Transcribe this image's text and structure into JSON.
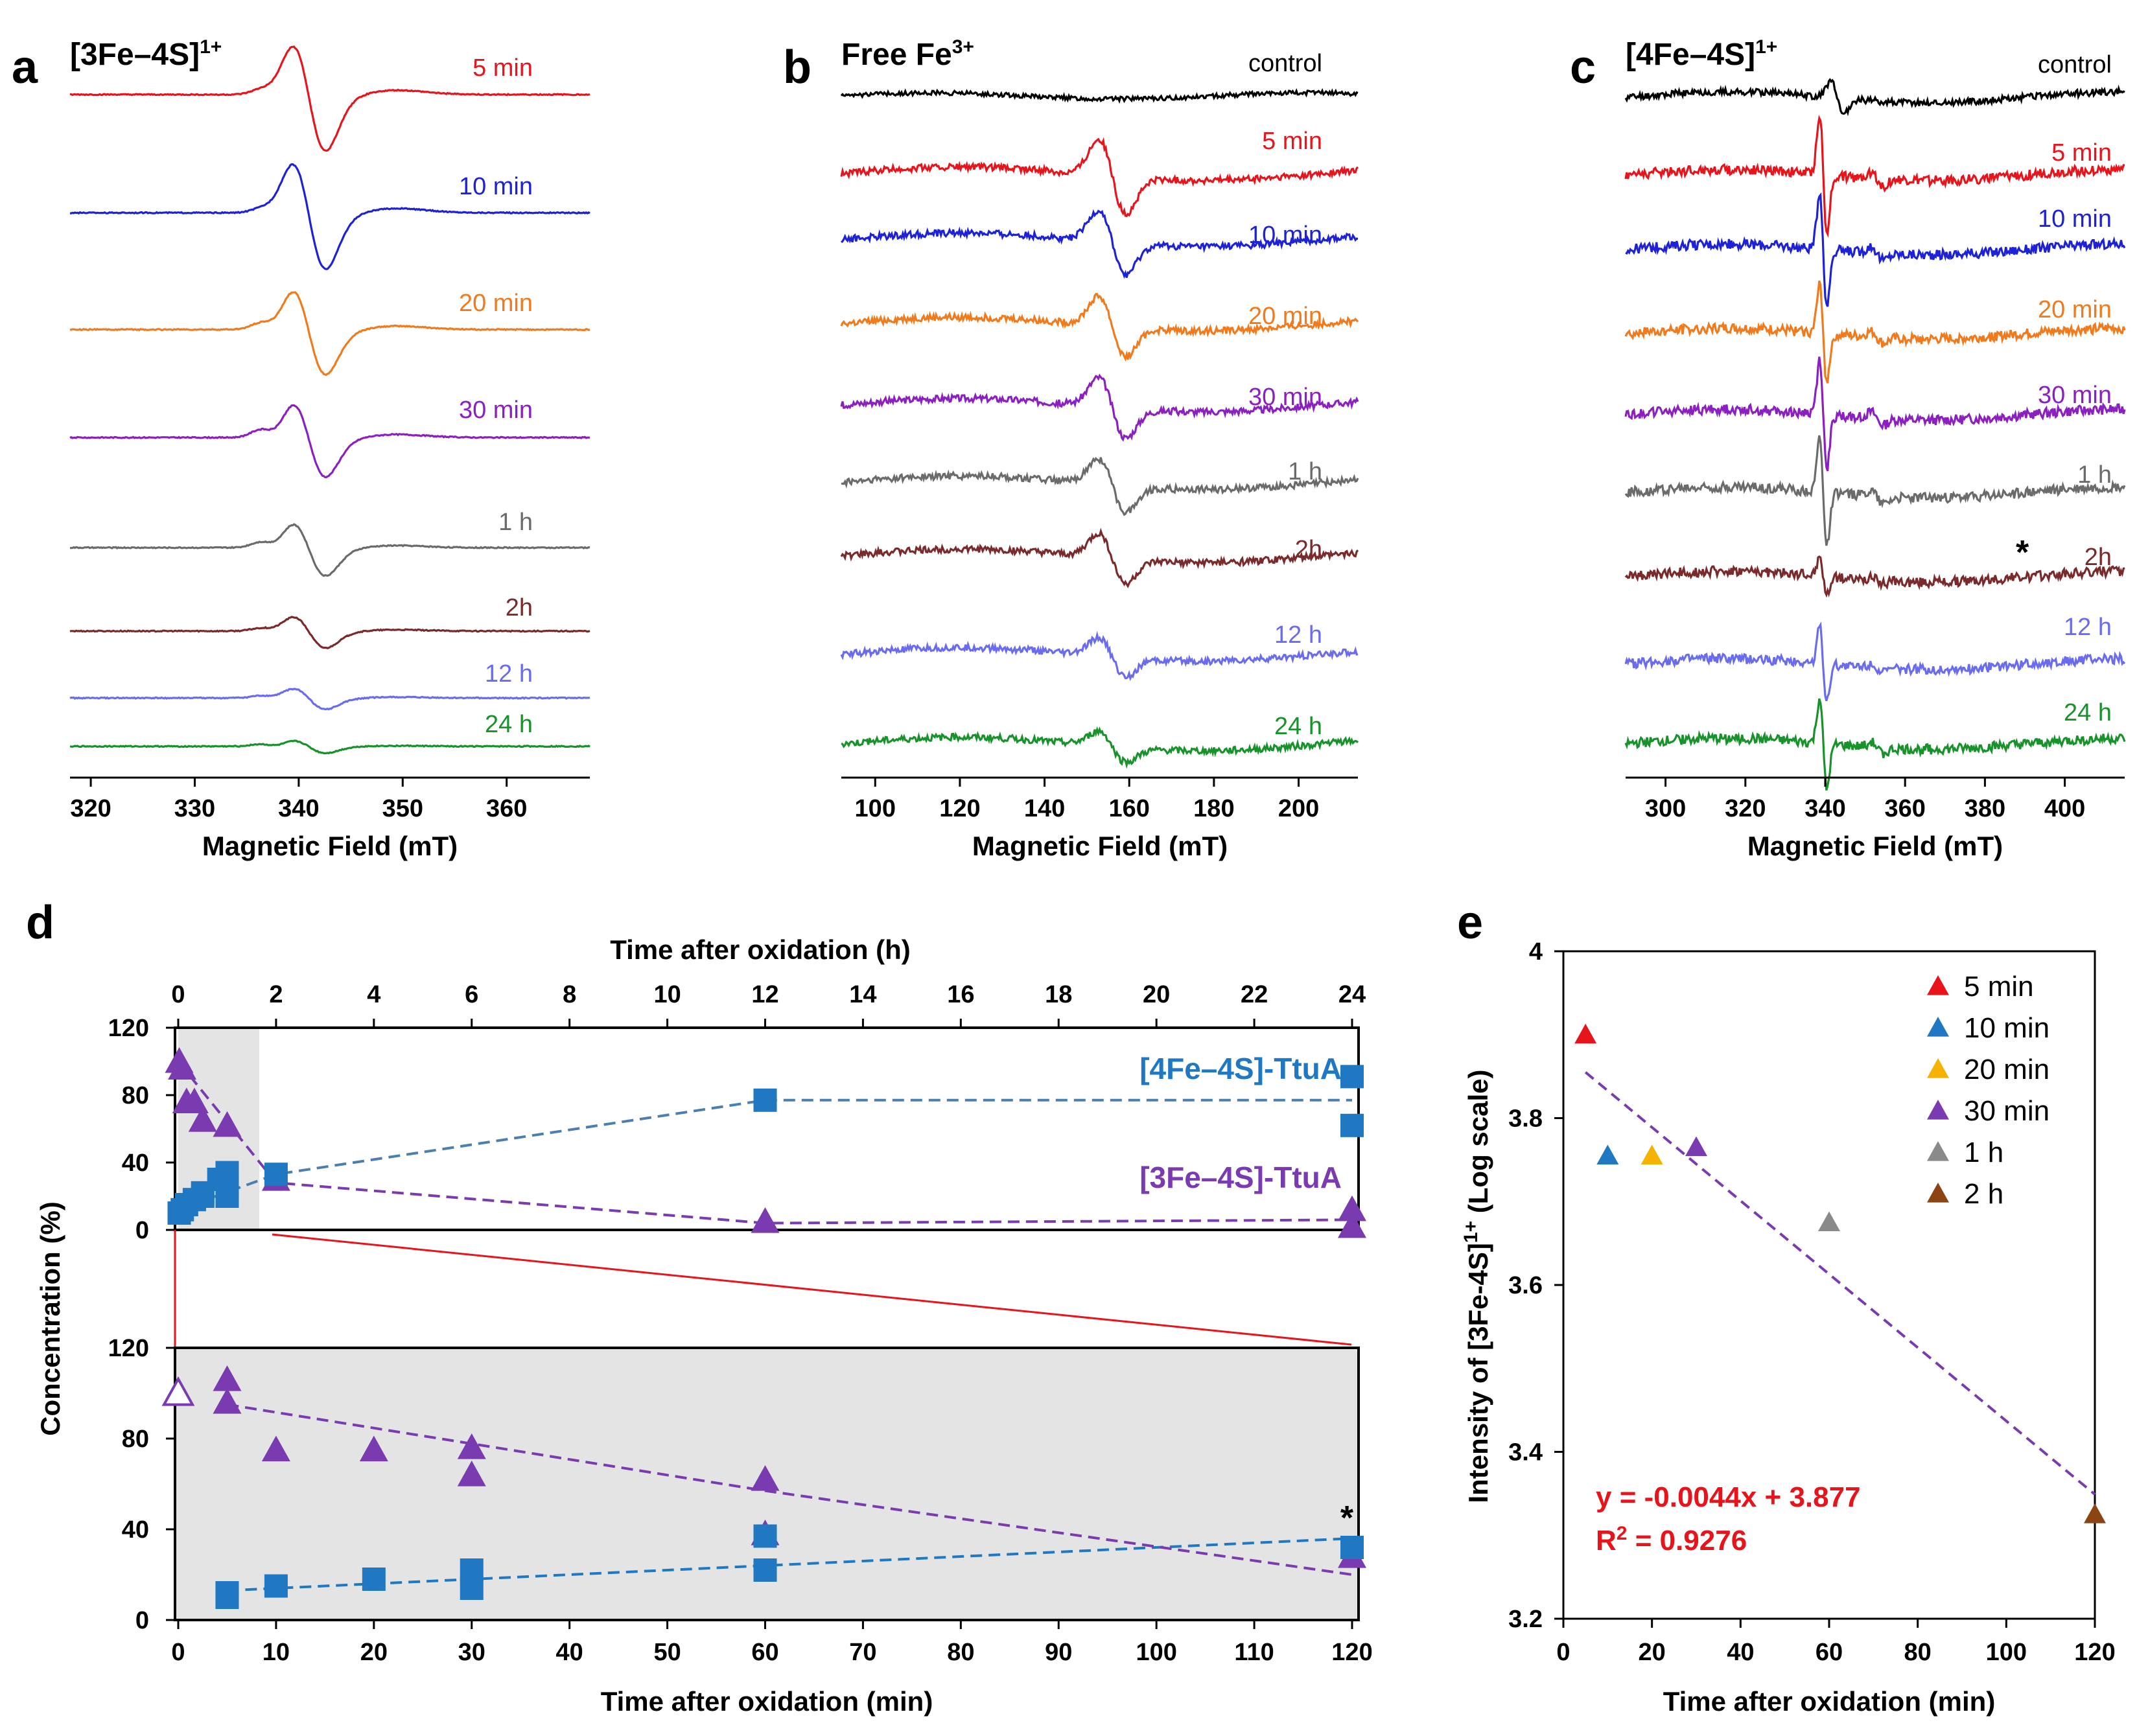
{
  "figure": {
    "panel_a": {
      "label": "a",
      "title": "[3Fe–4S]",
      "title_sup": "1+",
      "xlabel": "Magnetic Field (mT)",
      "xrange": [
        318,
        368
      ],
      "xticks": [
        320,
        330,
        340,
        350,
        360
      ],
      "traces": [
        {
          "label": "5 min",
          "color": "#e8141c",
          "amp": 1.0,
          "shoulder": 0.15
        },
        {
          "label": "10 min",
          "color": "#1d22d8",
          "amp": 1.0,
          "shoulder": 0.12
        },
        {
          "label": "20 min",
          "color": "#f07a1c",
          "amp": 0.8,
          "shoulder": 0.25
        },
        {
          "label": "30 min",
          "color": "#8b1fc0",
          "amp": 0.7,
          "shoulder": 0.35
        },
        {
          "label": "1 h",
          "color": "#6b6b6b",
          "amp": 0.5,
          "shoulder": 0.35
        },
        {
          "label": "2h",
          "color": "#7a2a2a",
          "amp": 0.3,
          "shoulder": 0.3
        },
        {
          "label": "12 h",
          "color": "#6a6cf0",
          "amp": 0.2,
          "shoulder": 0.35
        },
        {
          "label": "24 h",
          "color": "#18922a",
          "amp": 0.12,
          "shoulder": 0.6
        }
      ]
    },
    "panel_b": {
      "label": "b",
      "title": "Free Fe",
      "title_sup": "3+",
      "xlabel": "Magnetic Field (mT)",
      "xrange": [
        92,
        214
      ],
      "xticks": [
        100,
        120,
        140,
        160,
        180,
        200
      ],
      "traces": [
        {
          "label": "control",
          "color": "#000000",
          "amp": 0.0
        },
        {
          "label": "5 min",
          "color": "#e8141c",
          "amp": 1.0
        },
        {
          "label": "10 min",
          "color": "#1d22d8",
          "amp": 0.85
        },
        {
          "label": "20 min",
          "color": "#f07a1c",
          "amp": 0.8
        },
        {
          "label": "30 min",
          "color": "#8b1fc0",
          "amp": 0.8
        },
        {
          "label": "1 h",
          "color": "#6b6b6b",
          "amp": 0.7
        },
        {
          "label": "2h",
          "color": "#7a2a2a",
          "amp": 0.65
        },
        {
          "label": "12 h",
          "color": "#6a6cf0",
          "amp": 0.5
        },
        {
          "label": "24 h",
          "color": "#18922a",
          "amp": 0.4
        }
      ]
    },
    "panel_c": {
      "label": "c",
      "title": "[4Fe–4S]",
      "title_sup": "1+",
      "xlabel": "Magnetic Field (mT)",
      "xrange": [
        290,
        415
      ],
      "xticks": [
        300,
        320,
        340,
        360,
        380,
        400
      ],
      "star": "*",
      "traces": [
        {
          "label": "control",
          "color": "#000000",
          "amp": 0.25
        },
        {
          "label": "5 min",
          "color": "#e8141c",
          "amp": 1.0
        },
        {
          "label": "10 min",
          "color": "#1d22d8",
          "amp": 0.95
        },
        {
          "label": "20 min",
          "color": "#f07a1c",
          "amp": 0.8
        },
        {
          "label": "30 min",
          "color": "#8b1fc0",
          "amp": 0.9
        },
        {
          "label": "1 h",
          "color": "#6b6b6b",
          "amp": 0.9
        },
        {
          "label": "2h",
          "color": "#7a2a2a",
          "amp": 0.3
        },
        {
          "label": "12 h",
          "color": "#6a6cf0",
          "amp": 0.6
        },
        {
          "label": "24 h",
          "color": "#18922a",
          "amp": 0.75
        }
      ]
    },
    "panel_d": {
      "label": "d",
      "ylabel": "Concentration (%)",
      "top_xlabel": "Time after oxidation (h)",
      "top_xrange": [
        0,
        24
      ],
      "top_xticks": [
        0,
        2,
        4,
        6,
        8,
        10,
        12,
        14,
        16,
        18,
        20,
        22,
        24
      ],
      "top_yrange": [
        0,
        120
      ],
      "top_yticks": [
        0,
        40,
        80,
        120
      ],
      "bottom_xlabel": "Time after oxidation (min)",
      "bottom_xrange": [
        0,
        120
      ],
      "bottom_xticks": [
        0,
        10,
        20,
        30,
        40,
        50,
        60,
        70,
        80,
        90,
        100,
        110,
        120
      ],
      "bottom_yrange": [
        0,
        120
      ],
      "bottom_yticks": [
        0,
        40,
        80,
        120
      ],
      "star": "*",
      "series_4fe": {
        "name": "[4Fe–4S]-TtuA",
        "color": "#1f78c1",
        "top_points": [
          [
            0.02,
            10
          ],
          [
            0.083,
            12
          ],
          [
            0.17,
            15
          ],
          [
            0.33,
            18
          ],
          [
            0.5,
            20
          ],
          [
            0.5,
            22
          ],
          [
            0.83,
            30
          ],
          [
            1.0,
            34
          ],
          [
            1.0,
            25
          ],
          [
            1.0,
            20
          ],
          [
            2,
            33
          ],
          [
            12,
            77
          ],
          [
            24,
            91
          ],
          [
            24,
            62
          ]
        ],
        "top_fit": [
          [
            0,
            12
          ],
          [
            2,
            33
          ],
          [
            12,
            77
          ],
          [
            24,
            77
          ]
        ],
        "bottom_points": [
          [
            5,
            10
          ],
          [
            5,
            12
          ],
          [
            10,
            15
          ],
          [
            20,
            18
          ],
          [
            30,
            14
          ],
          [
            30,
            22
          ],
          [
            60,
            22
          ],
          [
            60,
            37
          ],
          [
            120,
            32
          ]
        ],
        "bottom_fit": [
          [
            5,
            13
          ],
          [
            60,
            24
          ],
          [
            120,
            36
          ]
        ]
      },
      "series_3fe": {
        "name": "[3Fe–4S]-TtuA",
        "color": "#7a3ab0",
        "top_points": [
          [
            0.02,
            100
          ],
          [
            0.08,
            96
          ],
          [
            0.17,
            76
          ],
          [
            0.33,
            76
          ],
          [
            0.5,
            65
          ],
          [
            1.0,
            62
          ],
          [
            2,
            30
          ],
          [
            12,
            5
          ],
          [
            24,
            12
          ],
          [
            24,
            2
          ]
        ],
        "top_fit": [
          [
            0,
            100
          ],
          [
            2,
            28
          ],
          [
            12,
            4
          ],
          [
            24,
            6
          ]
        ],
        "bottom_points": [
          [
            5,
            106
          ],
          [
            5,
            96
          ],
          [
            10,
            75
          ],
          [
            20,
            75
          ],
          [
            30,
            76
          ],
          [
            30,
            64
          ],
          [
            60,
            62
          ],
          [
            60,
            38
          ],
          [
            120,
            28
          ]
        ],
        "bottom_fit": [
          [
            5,
            95
          ],
          [
            60,
            57
          ],
          [
            120,
            20
          ]
        ],
        "open_point": [
          0,
          100
        ]
      }
    },
    "panel_e": {
      "label": "e",
      "ylabel": "Intensity of [3Fe-4S]",
      "ylabel_sup": "1+",
      "ylabel_tail": " (Log scale)",
      "xlabel": "Time after oxidation (min)",
      "xrange": [
        0,
        120
      ],
      "xticks": [
        0,
        20,
        40,
        60,
        80,
        100,
        120
      ],
      "yrange": [
        3.2,
        4.0
      ],
      "yticks": [
        "3.2",
        "3.4",
        "3.6",
        "3.8",
        "4"
      ],
      "points": [
        {
          "label": "5 min",
          "x": 5,
          "y": 3.9,
          "color": "#e8141c"
        },
        {
          "label": "10 min",
          "x": 10,
          "y": 3.755,
          "color": "#1f78c1"
        },
        {
          "label": "20 min",
          "x": 20,
          "y": 3.755,
          "color": "#f5b200"
        },
        {
          "label": "30 min",
          "x": 30,
          "y": 3.765,
          "color": "#7a3ab0"
        },
        {
          "label": "1 h",
          "x": 60,
          "y": 3.675,
          "color": "#8a8a8a"
        },
        {
          "label": "2 h",
          "x": 120,
          "y": 3.325,
          "color": "#8b4513"
        }
      ],
      "fit": {
        "slope": -0.0044,
        "intercept": 3.877,
        "x0": 5,
        "x1": 120,
        "color": "#7a3ab0"
      },
      "equation": "y = -0.0044x + 3.877",
      "r2": "R",
      "r2_sup": "2",
      "r2_tail": " = 0.9276"
    }
  }
}
